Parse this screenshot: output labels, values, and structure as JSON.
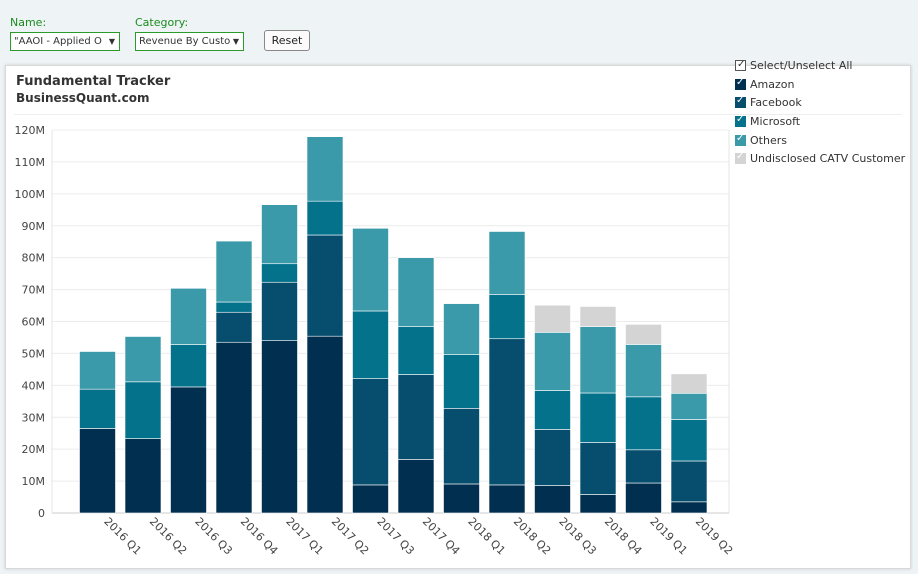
{
  "filters": {
    "name_label": "Name:",
    "name_value": "\"AAOI - Applied O",
    "category_label": "Category:",
    "category_value": "Revenue By Custo",
    "reset_label": "Reset"
  },
  "card": {
    "title": "Fundamental Tracker",
    "subtitle": "BusinessQuant.com"
  },
  "legend": {
    "select_all": "Select/Unselect All",
    "items": [
      {
        "label": "Amazon",
        "color": "#002f4f"
      },
      {
        "label": "Facebook",
        "color": "#064d6e"
      },
      {
        "label": "Microsoft",
        "color": "#05728c"
      },
      {
        "label": "Others",
        "color": "#3b9aaa"
      },
      {
        "label": "Undisclosed CATV Customer",
        "color": "#d4d4d4"
      }
    ]
  },
  "chart_data": {
    "type": "bar",
    "stacked": true,
    "categories": [
      "2016 Q1",
      "2016 Q2",
      "2016 Q3",
      "2016 Q4",
      "2017 Q1",
      "2017 Q2",
      "2017 Q3",
      "2017 Q4",
      "2018 Q1",
      "2018 Q2",
      "2018 Q3",
      "2018 Q4",
      "2019 Q1",
      "2019 Q2"
    ],
    "series": [
      {
        "name": "Amazon",
        "color": "#002f4f",
        "values": [
          26.5,
          23.3,
          39.5,
          53.5,
          54.0,
          55.4,
          8.8,
          16.8,
          9.1,
          8.8,
          8.6,
          5.8,
          9.4,
          3.5
        ]
      },
      {
        "name": "Facebook",
        "color": "#064d6e",
        "values": [
          0,
          0,
          0,
          9.4,
          18.3,
          31.7,
          33.3,
          26.6,
          23.7,
          45.8,
          17.6,
          16.3,
          10.4,
          12.8
        ]
      },
      {
        "name": "Microsoft",
        "color": "#05728c",
        "values": [
          12.3,
          17.8,
          13.3,
          3.2,
          5.8,
          10.6,
          21.2,
          15.0,
          16.9,
          13.9,
          12.2,
          15.5,
          16.6,
          13.0
        ]
      },
      {
        "name": "Others",
        "color": "#3b9aaa",
        "values": [
          11.8,
          14.2,
          17.6,
          19.1,
          18.5,
          20.2,
          25.9,
          21.6,
          15.9,
          19.7,
          18.2,
          20.8,
          16.4,
          8.2
        ]
      },
      {
        "name": "Undisclosed CATV Customer",
        "color": "#d4d4d4",
        "values": [
          0,
          0,
          0,
          0,
          0,
          0,
          0,
          0,
          0,
          0,
          8.5,
          6.3,
          6.3,
          6.1
        ]
      }
    ],
    "yticks": [
      "0",
      "10M",
      "20M",
      "30M",
      "40M",
      "50M",
      "60M",
      "70M",
      "80M",
      "90M",
      "100M",
      "110M",
      "120M"
    ],
    "ylim": [
      0,
      120
    ],
    "unit": "millions",
    "grid": true,
    "legend_position": "right"
  }
}
